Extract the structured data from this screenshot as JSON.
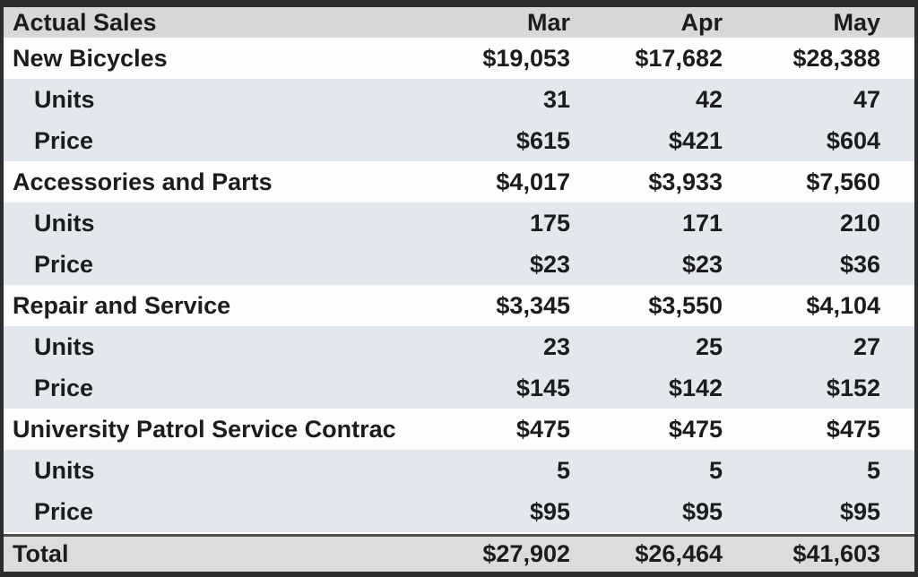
{
  "chart_data": {
    "type": "table",
    "title": "Actual Sales",
    "columns": [
      "Actual Sales",
      "Mar",
      "Apr",
      "May"
    ],
    "rows": [
      {
        "label": "New Bicycles",
        "indent": 0,
        "values": [
          "$19,053",
          "$17,682",
          "$28,388"
        ]
      },
      {
        "label": "Units",
        "indent": 1,
        "values": [
          "31",
          "42",
          "47"
        ]
      },
      {
        "label": "Price",
        "indent": 1,
        "values": [
          "$615",
          "$421",
          "$604"
        ]
      },
      {
        "label": "Accessories and Parts",
        "indent": 0,
        "values": [
          "$4,017",
          "$3,933",
          "$7,560"
        ]
      },
      {
        "label": "Units",
        "indent": 1,
        "values": [
          "175",
          "171",
          "210"
        ]
      },
      {
        "label": "Price",
        "indent": 1,
        "values": [
          "$23",
          "$23",
          "$36"
        ]
      },
      {
        "label": "Repair and Service",
        "indent": 0,
        "values": [
          "$3,345",
          "$3,550",
          "$4,104"
        ]
      },
      {
        "label": "Units",
        "indent": 1,
        "values": [
          "23",
          "25",
          "27"
        ]
      },
      {
        "label": "Price",
        "indent": 1,
        "values": [
          "$145",
          "$142",
          "$152"
        ]
      },
      {
        "label": "University Patrol Service Contrac",
        "indent": 0,
        "values": [
          "$475",
          "$475",
          "$475"
        ]
      },
      {
        "label": "Units",
        "indent": 1,
        "values": [
          "5",
          "5",
          "5"
        ]
      },
      {
        "label": "Price",
        "indent": 1,
        "values": [
          "$95",
          "$95",
          "$95"
        ]
      }
    ],
    "total_row": {
      "label": "Total",
      "values": [
        "$27,902",
        "$26,464",
        "$41,603"
      ]
    },
    "layout": {
      "grid": "off",
      "value_alignment": "right",
      "sub_rows_indented": true
    }
  },
  "colors": {
    "outer_border": "#2d2d2d",
    "header_bg": "#d8d8d8",
    "category_row_bg": "#fdfdfd",
    "sub_row_bg": "#e2e8ee",
    "total_row_bg": "#dcdcda",
    "total_divider": "#4e4e4e",
    "text": "#1c1c1c"
  }
}
